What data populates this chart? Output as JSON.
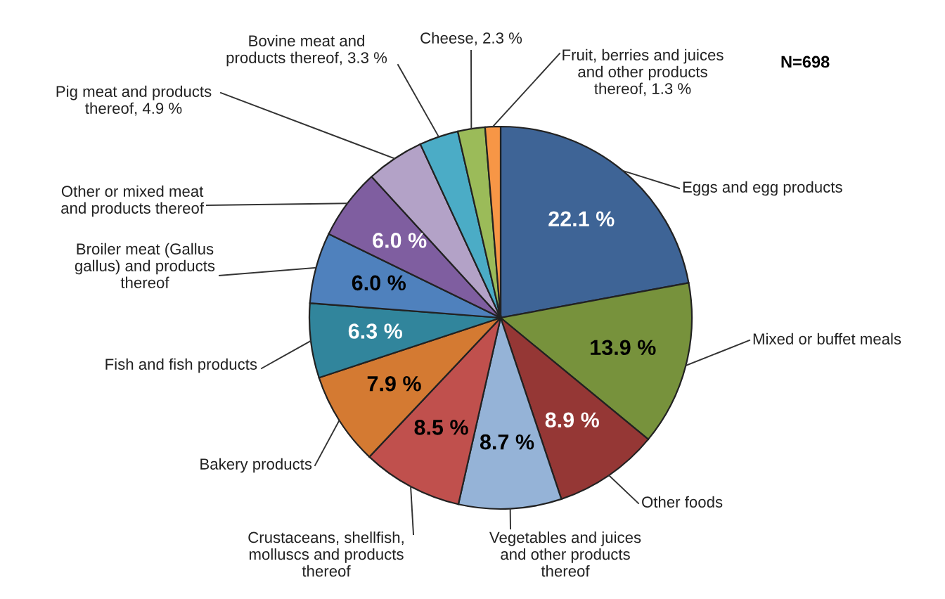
{
  "chart_data": {
    "type": "pie",
    "categories": [
      "Eggs and egg products",
      "Mixed or buffet meals",
      "Other foods",
      "Vegetables and juices\nand other products\nthereof",
      "Crustaceans, shellfish,\nmolluscs and products\nthereof",
      "Bakery products",
      "Fish and fish products",
      "Broiler meat (Gallus\ngallus) and products\nthereof",
      "Other or mixed meat\nand products thereof",
      "Pig meat and products\nthereof, 4.9 %",
      "Bovine meat and\nproducts thereof, 3.3 %",
      "Cheese, 2.3 %",
      "Fruit, berries and juices\nand other products\nthereof, 1.3 %"
    ],
    "values": [
      22.1,
      13.9,
      8.9,
      8.7,
      8.5,
      7.9,
      6.3,
      6.0,
      6.0,
      4.9,
      3.3,
      2.3,
      1.3
    ],
    "colors": [
      "#3e6496",
      "#77923c",
      "#953735",
      "#95b3d7",
      "#c0504d",
      "#d47a32",
      "#31859c",
      "#4f81bd",
      "#7f5ea0",
      "#b3a2c7",
      "#4bacc6",
      "#9bbb59",
      "#f79646"
    ],
    "value_labels": [
      "22.1 %",
      "13.9 %",
      "8.9 %",
      "8.7 %",
      "8.5 %",
      "7.9 %",
      "6.3 %",
      "6.0 %",
      "6.0 %",
      null,
      null,
      null,
      null
    ],
    "annotations": [
      "N=698"
    ]
  }
}
